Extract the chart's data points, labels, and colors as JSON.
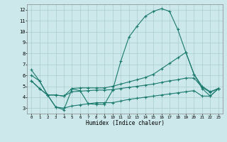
{
  "xlabel": "Humidex (Indice chaleur)",
  "background_color": "#cce8ea",
  "grid_color": "#aacdd0",
  "line_color": "#1a7a6e",
  "xlim": [
    -0.5,
    23.5
  ],
  "ylim": [
    2.5,
    12.5
  ],
  "xticks": [
    0,
    1,
    2,
    3,
    4,
    5,
    6,
    7,
    8,
    9,
    10,
    11,
    12,
    13,
    14,
    15,
    16,
    17,
    18,
    19,
    20,
    21,
    22,
    23
  ],
  "yticks": [
    3,
    4,
    5,
    6,
    7,
    8,
    9,
    10,
    11,
    12
  ],
  "line1_x": [
    0,
    1,
    2,
    3,
    4,
    5,
    6,
    7,
    8,
    9,
    10,
    11,
    12,
    13,
    14,
    15,
    16,
    17,
    18,
    19,
    20,
    21,
    22,
    23
  ],
  "line1_y": [
    6.5,
    5.5,
    4.2,
    3.1,
    2.85,
    4.75,
    4.6,
    3.4,
    3.35,
    3.35,
    4.65,
    7.3,
    9.5,
    10.5,
    11.4,
    11.85,
    12.1,
    11.85,
    10.2,
    8.1,
    6.1,
    4.8,
    4.1,
    4.8
  ],
  "line2_x": [
    0,
    1,
    2,
    3,
    4,
    5,
    6,
    7,
    8,
    9,
    10,
    11,
    12,
    13,
    14,
    15,
    16,
    17,
    18,
    19,
    20,
    21,
    22,
    23
  ],
  "line2_y": [
    6.0,
    5.5,
    4.2,
    4.2,
    4.1,
    4.8,
    4.85,
    4.85,
    4.85,
    4.85,
    5.0,
    5.2,
    5.4,
    5.6,
    5.8,
    6.1,
    6.6,
    7.1,
    7.6,
    8.1,
    6.1,
    5.0,
    4.5,
    4.8
  ],
  "line3_x": [
    0,
    1,
    2,
    3,
    4,
    5,
    6,
    7,
    8,
    9,
    10,
    11,
    12,
    13,
    14,
    15,
    16,
    17,
    18,
    19,
    20,
    21,
    22,
    23
  ],
  "line3_y": [
    5.5,
    4.8,
    4.2,
    4.2,
    4.1,
    4.5,
    4.55,
    4.6,
    4.65,
    4.65,
    4.7,
    4.8,
    4.9,
    5.0,
    5.1,
    5.2,
    5.35,
    5.5,
    5.6,
    5.75,
    5.75,
    4.9,
    4.45,
    4.8
  ],
  "line4_x": [
    0,
    1,
    2,
    3,
    4,
    5,
    6,
    7,
    8,
    9,
    10,
    11,
    12,
    13,
    14,
    15,
    16,
    17,
    18,
    19,
    20,
    21,
    22,
    23
  ],
  "line4_y": [
    5.5,
    4.8,
    4.2,
    3.1,
    3.0,
    3.2,
    3.3,
    3.4,
    3.5,
    3.5,
    3.5,
    3.65,
    3.8,
    3.9,
    4.0,
    4.1,
    4.2,
    4.3,
    4.4,
    4.5,
    4.6,
    4.1,
    4.1,
    4.8
  ]
}
